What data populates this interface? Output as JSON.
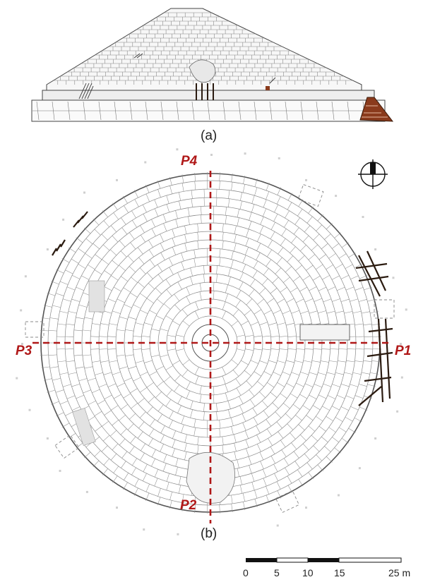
{
  "captions": {
    "a": "(a)",
    "b": "(b)"
  },
  "profiles": {
    "p1": "P1",
    "p2": "P2",
    "p3": "P3",
    "p4": "P4"
  },
  "scale_bar": {
    "ticks": [
      "0",
      "5",
      "10",
      "15",
      "25 m"
    ]
  },
  "colors": {
    "profile_line": "#b01818",
    "masonry": "#555555",
    "stairs": "#8a3a1c",
    "scaffold": "#2b1b10"
  },
  "icons": {
    "north_arrow": "north-arrow-icon"
  }
}
